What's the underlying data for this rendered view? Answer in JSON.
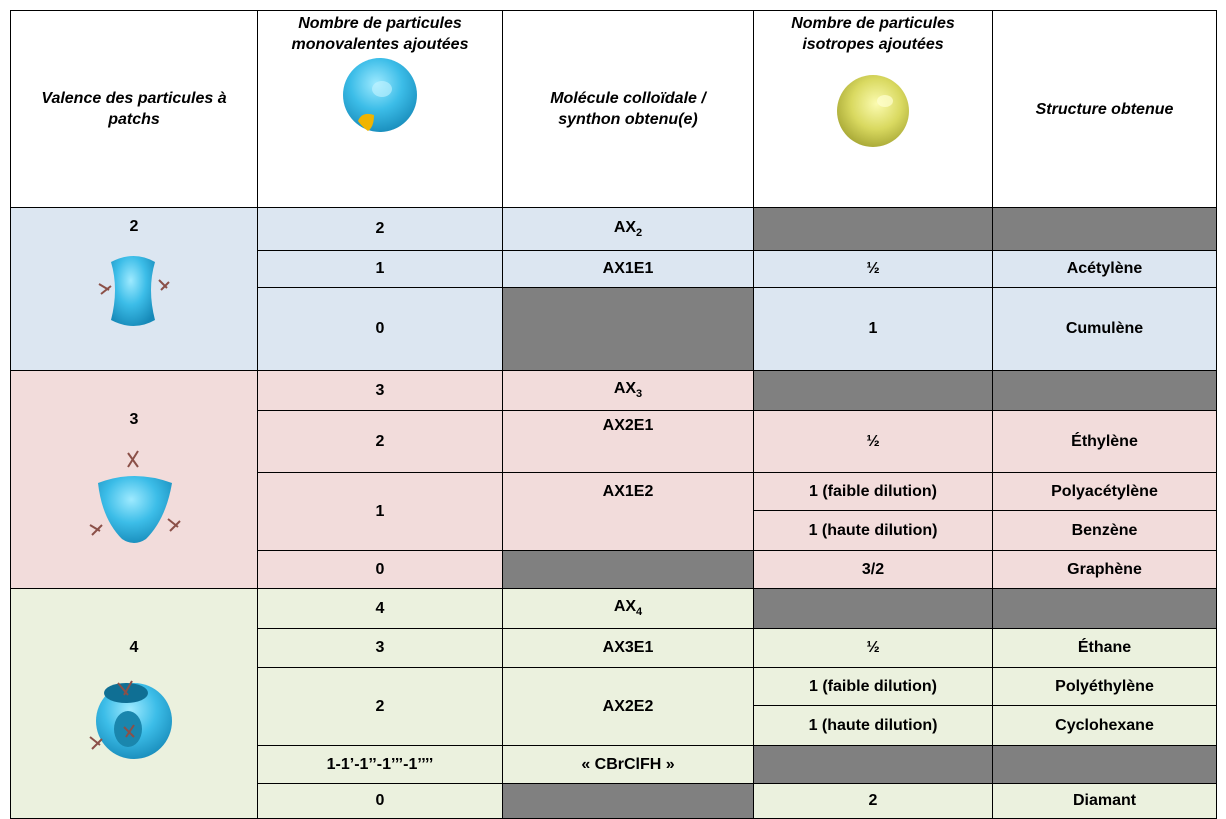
{
  "table": {
    "header": [
      "Valence des particules à patchs",
      "Nombre de particules monovalentes ajoutées",
      "Molécule colloïdale / synthon obtenu(e)",
      "Nombre de particules isotropes ajoutées",
      "Structure obtenue"
    ],
    "groups": [
      {
        "valence": "2",
        "rows": [
          {
            "monovalent": "2",
            "formula": {
              "text": "AX",
              "sub": "2"
            }
          },
          {
            "monovalent": "1",
            "formula": {
              "text": "AX1E1"
            },
            "isotrope": "½",
            "structure": "Acétylène"
          },
          {
            "monovalent": "0",
            "isotrope": "1",
            "structure": "Cumulène"
          }
        ]
      },
      {
        "valence": "3",
        "rows": [
          {
            "monovalent": "3",
            "formula": {
              "text": "AX",
              "sub": "3"
            }
          },
          {
            "monovalent": "2",
            "formula": {
              "text": "AX2E1"
            },
            "isotrope": "½",
            "structure": "Éthylène"
          },
          {
            "monovalent": "1",
            "formula": {
              "text": "AX1E2"
            },
            "isotrope": "1 (faible dilution)",
            "structure": "Polyacétylène"
          },
          {
            "isotrope": "1 (haute dilution)",
            "structure": "Benzène"
          },
          {
            "monovalent": "0",
            "isotrope": "3/2",
            "structure": "Graphène"
          }
        ]
      },
      {
        "valence": "4",
        "rows": [
          {
            "monovalent": "4",
            "formula": {
              "text": "AX",
              "sub": "4"
            }
          },
          {
            "monovalent": "3",
            "formula": {
              "text": "AX3E1"
            },
            "isotrope": "½",
            "structure": "Éthane"
          },
          {
            "monovalent": "2",
            "formula": {
              "text": "AX2E2"
            },
            "isotrope": "1 (faible dilution)",
            "structure": "Polyéthylène"
          },
          {
            "isotrope": "1 (haute dilution)",
            "structure": "Cyclohexane"
          },
          {
            "monovalent": "1-1’-1’’-1’’’-1’’’’",
            "formula": {
              "text": "« CBrClFH »"
            }
          },
          {
            "monovalent": "0",
            "isotrope": "2",
            "structure": "Diamant"
          }
        ]
      }
    ]
  }
}
